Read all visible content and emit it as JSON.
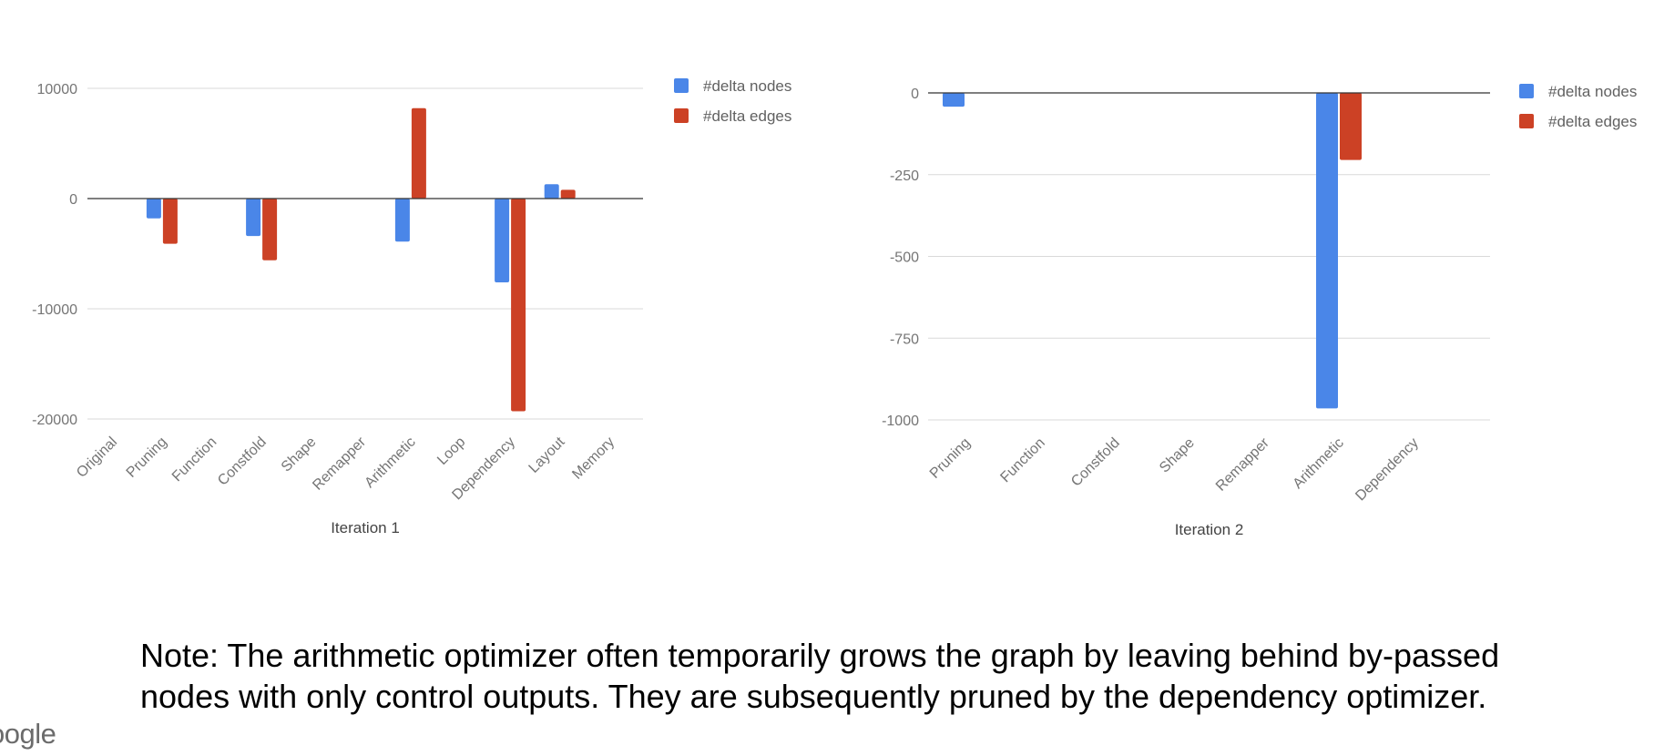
{
  "colors": {
    "nodes": "#4a86e8",
    "edges": "#cc4125",
    "grid": "#d9d9d9",
    "baseline": "#333333"
  },
  "chart_data": [
    {
      "type": "bar",
      "title": "",
      "xlabel": "Iteration 1",
      "ylabel": "",
      "categories": [
        "Original",
        "Pruning",
        "Function",
        "Constfold",
        "Shape",
        "Remapper",
        "Arithmetic",
        "Loop",
        "Dependency",
        "Layout",
        "Memory"
      ],
      "series": [
        {
          "name": "#delta nodes",
          "values": [
            0,
            -1800,
            0,
            -3400,
            0,
            0,
            -3900,
            0,
            -7600,
            1300,
            0
          ]
        },
        {
          "name": "#delta edges",
          "values": [
            0,
            -4100,
            0,
            -5600,
            0,
            0,
            8200,
            0,
            -19300,
            800,
            0
          ]
        }
      ],
      "ylim": [
        -20000,
        10000
      ],
      "yticks": [
        10000,
        0,
        -10000,
        -20000
      ],
      "ytick_labels": [
        "10000",
        "0",
        "-10000",
        "-20000"
      ],
      "grid": true,
      "legend": "top-right"
    },
    {
      "type": "bar",
      "title": "",
      "xlabel": "Iteration 2",
      "ylabel": "",
      "categories": [
        "Pruning",
        "Function",
        "Constfold",
        "Shape",
        "Remapper",
        "Arithmetic",
        "Dependency"
      ],
      "series": [
        {
          "name": "#delta nodes",
          "values": [
            -42,
            0,
            0,
            0,
            0,
            -965,
            0
          ]
        },
        {
          "name": "#delta edges",
          "values": [
            0,
            0,
            0,
            0,
            0,
            -205,
            0
          ]
        }
      ],
      "ylim": [
        -1000,
        0
      ],
      "yticks": [
        0,
        -250,
        -500,
        -750,
        -1000
      ],
      "ytick_labels": [
        "0",
        "-250",
        "-500",
        "-750",
        "-1000"
      ],
      "grid": true,
      "legend": "top-right"
    }
  ],
  "note": {
    "line1": "Note: The arithmetic optimizer often temporarily grows the graph by leaving behind by-passed",
    "line2": "nodes with only control outputs. They are subsequently pruned by the dependency optimizer."
  },
  "footer": {
    "logo_text": "oogle"
  }
}
